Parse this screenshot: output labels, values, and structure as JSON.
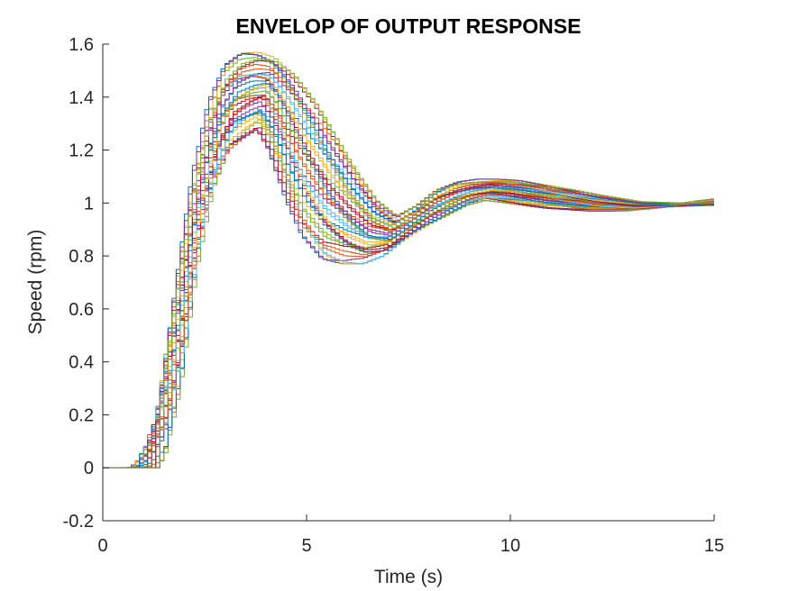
{
  "chart_data": {
    "type": "line",
    "title": "ENVELOP OF OUTPUT RESPONSE",
    "xlabel": "Time (s)",
    "ylabel": "Speed (rpm)",
    "xlim": [
      0,
      15
    ],
    "ylim": [
      -0.2,
      1.6
    ],
    "xticks": [
      0,
      5,
      10,
      15
    ],
    "xtick_labels": [
      "0",
      "5",
      "10",
      "15"
    ],
    "yticks": [
      -0.2,
      0,
      0.2,
      0.4,
      0.6,
      0.8,
      1,
      1.2,
      1.4,
      1.6
    ],
    "ytick_labels": [
      "-0.2",
      "0",
      "0.2",
      "0.4",
      "0.6",
      "0.8",
      "1",
      "1.2",
      "1.4",
      "1.6"
    ],
    "grid": false,
    "legend": "none",
    "series_style": "stairs",
    "series_count": 40,
    "envelope": {
      "description_source": "visual",
      "upper": [
        {
          "x": 0,
          "y": 0
        },
        {
          "x": 0.8,
          "y": 0.03
        },
        {
          "x": 1.2,
          "y": 0.25
        },
        {
          "x": 1.6,
          "y": 0.7
        },
        {
          "x": 2.0,
          "y": 1.1
        },
        {
          "x": 2.4,
          "y": 1.38
        },
        {
          "x": 2.8,
          "y": 1.52
        },
        {
          "x": 3.2,
          "y": 1.565
        },
        {
          "x": 3.6,
          "y": 1.57
        },
        {
          "x": 4.0,
          "y": 1.55
        },
        {
          "x": 4.5,
          "y": 1.48
        },
        {
          "x": 5.0,
          "y": 1.38
        },
        {
          "x": 5.5,
          "y": 1.25
        },
        {
          "x": 6.0,
          "y": 1.12
        },
        {
          "x": 6.5,
          "y": 1.01
        },
        {
          "x": 7.0,
          "y": 0.95
        },
        {
          "x": 7.5,
          "y": 0.99
        },
        {
          "x": 8.0,
          "y": 1.05
        },
        {
          "x": 8.5,
          "y": 1.08
        },
        {
          "x": 9.0,
          "y": 1.09
        },
        {
          "x": 9.5,
          "y": 1.09
        },
        {
          "x": 10.0,
          "y": 1.085
        },
        {
          "x": 11.0,
          "y": 1.06
        },
        {
          "x": 12.0,
          "y": 1.03
        },
        {
          "x": 13.0,
          "y": 1.005
        },
        {
          "x": 14.0,
          "y": 1.0
        },
        {
          "x": 15.0,
          "y": 1.02
        }
      ],
      "lower": [
        {
          "x": 0,
          "y": 0
        },
        {
          "x": 1.2,
          "y": 0
        },
        {
          "x": 1.6,
          "y": 0.03
        },
        {
          "x": 2.0,
          "y": 0.3
        },
        {
          "x": 2.4,
          "y": 0.75
        },
        {
          "x": 2.8,
          "y": 1.05
        },
        {
          "x": 3.2,
          "y": 1.2
        },
        {
          "x": 3.6,
          "y": 1.25
        },
        {
          "x": 3.9,
          "y": 1.28
        },
        {
          "x": 4.2,
          "y": 1.2
        },
        {
          "x": 4.6,
          "y": 1.02
        },
        {
          "x": 5.0,
          "y": 0.88
        },
        {
          "x": 5.5,
          "y": 0.79
        },
        {
          "x": 6.0,
          "y": 0.77
        },
        {
          "x": 6.5,
          "y": 0.77
        },
        {
          "x": 7.0,
          "y": 0.8
        },
        {
          "x": 7.5,
          "y": 0.86
        },
        {
          "x": 8.0,
          "y": 0.91
        },
        {
          "x": 8.5,
          "y": 0.95
        },
        {
          "x": 9.0,
          "y": 0.99
        },
        {
          "x": 9.5,
          "y": 1.01
        },
        {
          "x": 10.0,
          "y": 1.0
        },
        {
          "x": 11.0,
          "y": 0.98
        },
        {
          "x": 12.0,
          "y": 0.97
        },
        {
          "x": 13.0,
          "y": 0.97
        },
        {
          "x": 14.0,
          "y": 0.985
        },
        {
          "x": 15.0,
          "y": 0.99
        }
      ]
    },
    "colors": [
      "#0072BD",
      "#D95319",
      "#EDB120",
      "#7E2F8E",
      "#77AC30",
      "#4DBEEE",
      "#A2142F"
    ]
  }
}
